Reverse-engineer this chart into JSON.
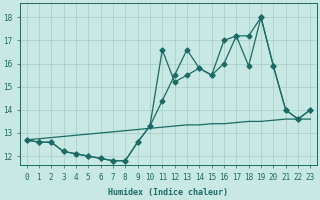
{
  "xlabel": "Humidex (Indice chaleur)",
  "xlim": [
    -0.5,
    23.5
  ],
  "ylim": [
    11.6,
    18.6
  ],
  "xticks": [
    0,
    1,
    2,
    3,
    4,
    5,
    6,
    7,
    8,
    9,
    10,
    11,
    12,
    13,
    14,
    15,
    16,
    17,
    18,
    19,
    20,
    21,
    22,
    23
  ],
  "yticks": [
    12,
    13,
    14,
    15,
    16,
    17,
    18
  ],
  "background_color": "#c8e8e4",
  "grid_color": "#a8ccc8",
  "line_color": "#1a6b64",
  "line1_x": [
    0,
    1,
    2,
    3,
    4,
    5,
    6,
    7,
    8,
    9,
    10,
    11,
    12,
    13,
    14,
    15,
    16,
    17,
    18,
    19,
    20,
    21,
    22,
    23
  ],
  "line1_y": [
    12.7,
    12.6,
    12.6,
    12.2,
    12.1,
    12.0,
    11.9,
    11.8,
    11.8,
    12.6,
    13.3,
    14.4,
    15.5,
    16.6,
    15.8,
    15.5,
    16.0,
    17.2,
    15.9,
    18.0,
    15.9,
    14.0,
    13.6,
    14.0
  ],
  "line2_x": [
    0,
    1,
    2,
    3,
    4,
    5,
    6,
    7,
    8,
    9,
    10,
    11,
    12,
    13,
    14,
    15,
    16,
    17,
    18,
    19,
    20,
    21,
    22,
    23
  ],
  "line2_y": [
    12.7,
    12.6,
    12.6,
    12.2,
    12.1,
    12.0,
    11.9,
    11.8,
    11.8,
    12.6,
    13.3,
    16.6,
    15.2,
    15.5,
    15.8,
    15.5,
    17.0,
    17.2,
    17.2,
    18.0,
    15.9,
    14.0,
    13.6,
    14.0
  ],
  "line3_x": [
    0,
    1,
    2,
    3,
    4,
    5,
    6,
    7,
    8,
    9,
    10,
    11,
    12,
    13,
    14,
    15,
    16,
    17,
    18,
    19,
    20,
    21,
    22,
    23
  ],
  "line3_y": [
    12.7,
    12.75,
    12.8,
    12.85,
    12.9,
    12.95,
    13.0,
    13.05,
    13.1,
    13.15,
    13.2,
    13.25,
    13.3,
    13.35,
    13.35,
    13.4,
    13.4,
    13.45,
    13.5,
    13.5,
    13.55,
    13.6,
    13.6,
    13.6
  ],
  "marker": "D",
  "markersize": 2.5,
  "linewidth": 0.9
}
